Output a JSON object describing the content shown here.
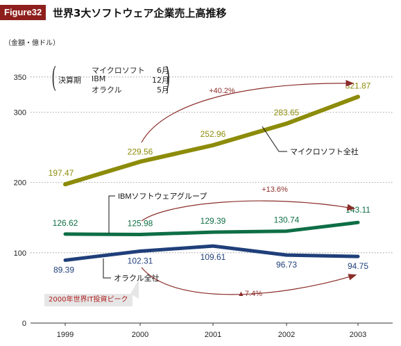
{
  "figure_badge": "Figure32",
  "figure_title": "世界3大ソフトウェア企業売上高推移",
  "unit_label": "（金額・億ドル）",
  "fiscal_note": {
    "label": "決算期",
    "rows": [
      {
        "company": "マイクロソフト",
        "month": "6月"
      },
      {
        "company": "IBM",
        "month": "12月"
      },
      {
        "company": "オラクル",
        "month": "5月"
      }
    ]
  },
  "peak_label": "2000年世界IT投資ピーク",
  "colors": {
    "microsoft": "#8c8c0a",
    "ibm": "#0e6e45",
    "oracle": "#1f3f7a",
    "arrow": "#8a2e2a",
    "badge": "#8e1f1c"
  },
  "chart_data": {
    "type": "line",
    "x": [
      "1999",
      "2000",
      "2001",
      "2002",
      "2003"
    ],
    "ylim": [
      0,
      370
    ],
    "yticks": [
      0,
      100,
      200,
      300,
      350
    ],
    "grid": true,
    "series": [
      {
        "name": "マイクロソフト全社",
        "values": [
          197.47,
          229.56,
          252.96,
          283.65,
          321.87
        ],
        "labels": [
          "197.47",
          "229.56",
          "252.96",
          "283.65",
          "321.87"
        ],
        "color": "#8c8c0a"
      },
      {
        "name": "IBMソフトウェアグループ",
        "values": [
          126.62,
          125.98,
          129.39,
          130.74,
          143.11
        ],
        "labels": [
          "126.62",
          "125.98",
          "129.39",
          "130.74",
          "143.11"
        ],
        "color": "#0e6e45"
      },
      {
        "name": "オラクル全社",
        "values": [
          89.39,
          102.31,
          109.61,
          96.73,
          94.75
        ],
        "labels": [
          "89.39",
          "102.31",
          "109.61",
          "96.73",
          "94.75"
        ],
        "color": "#1f3f7a"
      }
    ],
    "growth_annotations": [
      {
        "text": "+40.2%",
        "series": "マイクロソフト全社"
      },
      {
        "text": "+13.6%",
        "series": "IBMソフトウェアグループ"
      },
      {
        "text": "▲7.4%",
        "series": "オラクル全社"
      }
    ]
  }
}
